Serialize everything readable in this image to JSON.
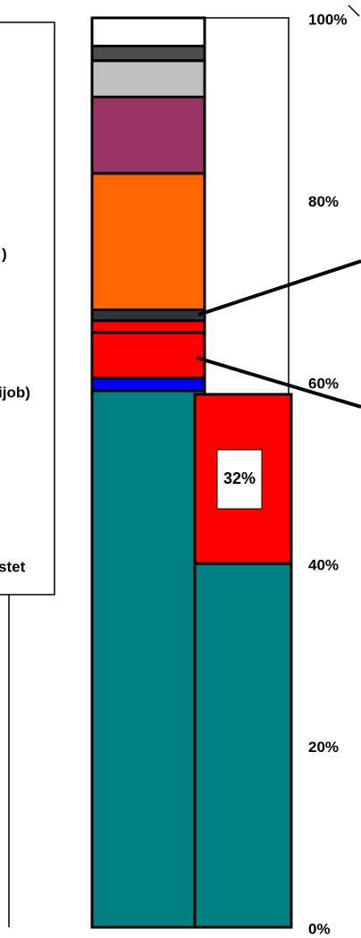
{
  "chart_data": {
    "type": "stacked_bar",
    "categories": [
      null,
      null
    ],
    "series": [
      {
        "color": "#008080",
        "values": [
          59,
          40
        ]
      },
      {
        "color": "#0000ff",
        "values": [
          1.4,
          null
        ]
      },
      {
        "color": "#ff0000",
        "values": [
          5,
          18.6
        ]
      },
      {
        "color": "#ff0000",
        "values": [
          1.3,
          null
        ]
      },
      {
        "color": "#333333",
        "values": [
          1.2,
          null
        ]
      },
      {
        "color": "#ff6600",
        "values": [
          15,
          null
        ]
      },
      {
        "color": "#993366",
        "values": [
          8.4,
          null
        ]
      },
      {
        "color": "#c0c0c0",
        "values": [
          4,
          null
        ]
      },
      {
        "color": "#4d4d4d",
        "values": [
          1.6,
          null
        ]
      },
      {
        "color": "#ffffff",
        "values": [
          3.1,
          null
        ]
      }
    ],
    "ylim": [
      0,
      100
    ],
    "yticks": [
      {
        "value": 0,
        "label": "0%"
      },
      {
        "value": 20,
        "label": "20%"
      },
      {
        "value": 40,
        "label": "40%"
      },
      {
        "value": 60,
        "label": "60%"
      },
      {
        "value": 80,
        "label": "80%"
      },
      {
        "value": 100,
        "label": "100%"
      }
    ],
    "annotation": "32%",
    "legend_texts": [
      ")",
      "ijob)",
      "stet"
    ]
  }
}
